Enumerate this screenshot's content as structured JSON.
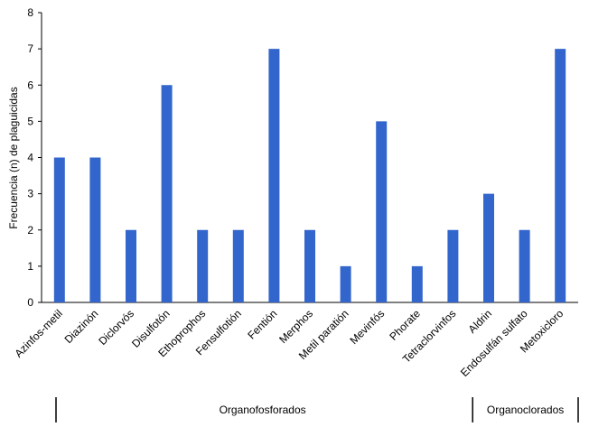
{
  "chart_data": {
    "type": "bar",
    "title": "",
    "xlabel": "",
    "ylabel": "Frecuencia (n) de plaguicidas",
    "ylim": [
      0,
      8
    ],
    "yticks": [
      0,
      1,
      2,
      3,
      4,
      5,
      6,
      7,
      8
    ],
    "grid": false,
    "bar_color": "#3366CC",
    "categories": [
      "Azinfos-metil",
      "Diazinón",
      "Diclorvós",
      "Disulfotón",
      "Ethoprophos",
      "Fensulfotión",
      "Fentión",
      "Merphos",
      "Metil paratión",
      "Mevinfós",
      "Phorate",
      "Tetraclorvinfos",
      "Aldrin",
      "Endosulfán sulfato",
      "Metoxicloro"
    ],
    "values": [
      4,
      4,
      2,
      6,
      2,
      2,
      7,
      2,
      1,
      5,
      1,
      2,
      3,
      2,
      7
    ],
    "groups": [
      {
        "label": "Organofosforados",
        "count": 12
      },
      {
        "label": "Organoclorados",
        "count": 3
      }
    ]
  }
}
